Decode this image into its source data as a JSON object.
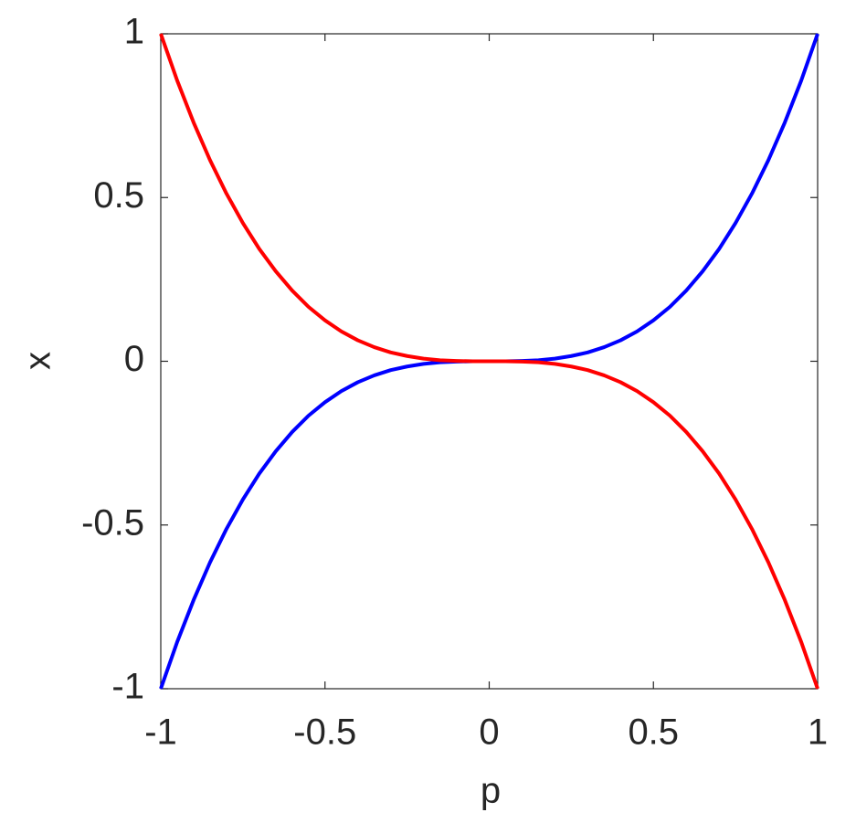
{
  "chart_data": {
    "type": "line",
    "x_label": "p",
    "y_label": "x",
    "x": [
      -1,
      -0.95,
      -0.9,
      -0.85,
      -0.8,
      -0.75,
      -0.7,
      -0.65,
      -0.6,
      -0.55,
      -0.5,
      -0.45,
      -0.4,
      -0.35,
      -0.3,
      -0.25,
      -0.2,
      -0.15,
      -0.1,
      -0.05,
      0,
      0.05,
      0.1,
      0.15,
      0.2,
      0.25,
      0.3,
      0.35,
      0.4,
      0.45,
      0.5,
      0.55,
      0.6,
      0.65,
      0.7,
      0.75,
      0.8,
      0.85,
      0.9,
      0.95,
      1
    ],
    "series": [
      {
        "color": "#0000ff",
        "values": [
          -1,
          -0.857,
          -0.729,
          -0.614,
          -0.512,
          -0.422,
          -0.343,
          -0.275,
          -0.216,
          -0.166,
          -0.125,
          -0.091,
          -0.064,
          -0.043,
          -0.027,
          -0.016,
          -0.008,
          -0.003,
          -0.001,
          0,
          0,
          0,
          0.001,
          0.003,
          0.008,
          0.016,
          0.027,
          0.043,
          0.064,
          0.091,
          0.125,
          0.166,
          0.216,
          0.275,
          0.343,
          0.422,
          0.512,
          0.614,
          0.729,
          0.857,
          1
        ]
      },
      {
        "color": "#ff0000",
        "values": [
          1,
          0.857,
          0.729,
          0.614,
          0.512,
          0.422,
          0.343,
          0.275,
          0.216,
          0.166,
          0.125,
          0.091,
          0.064,
          0.043,
          0.027,
          0.016,
          0.008,
          0.003,
          0.001,
          0,
          0,
          0,
          -0.001,
          -0.003,
          -0.008,
          -0.016,
          -0.027,
          -0.043,
          -0.064,
          -0.091,
          -0.125,
          -0.166,
          -0.216,
          -0.275,
          -0.343,
          -0.422,
          -0.512,
          -0.614,
          -0.729,
          -0.857,
          -1
        ]
      }
    ],
    "xlim": [
      -1,
      1
    ],
    "ylim": [
      -1,
      1
    ],
    "xticks": [
      -1,
      -0.5,
      0,
      0.5,
      1
    ],
    "yticks": [
      -1,
      -0.5,
      0,
      0.5,
      1
    ],
    "grid": false
  }
}
